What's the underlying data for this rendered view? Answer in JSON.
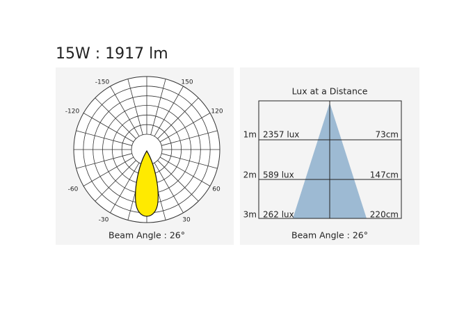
{
  "header": {
    "title": "15W : 1917 lm"
  },
  "polar": {
    "labels": [
      "-150",
      "150",
      "-120",
      "120",
      "-60",
      "60",
      "-30",
      "30"
    ],
    "caption": "Beam Angle : 26°"
  },
  "lux": {
    "title": "Lux at a Distance",
    "rows": [
      {
        "distance": "1m",
        "lux": "2357 lux",
        "diameter": "73cm"
      },
      {
        "distance": "2m",
        "lux": "589 lux",
        "diameter": "147cm"
      },
      {
        "distance": "3m",
        "lux": "262 lux",
        "diameter": "220cm"
      }
    ],
    "caption": "Beam Angle : 26°"
  }
}
